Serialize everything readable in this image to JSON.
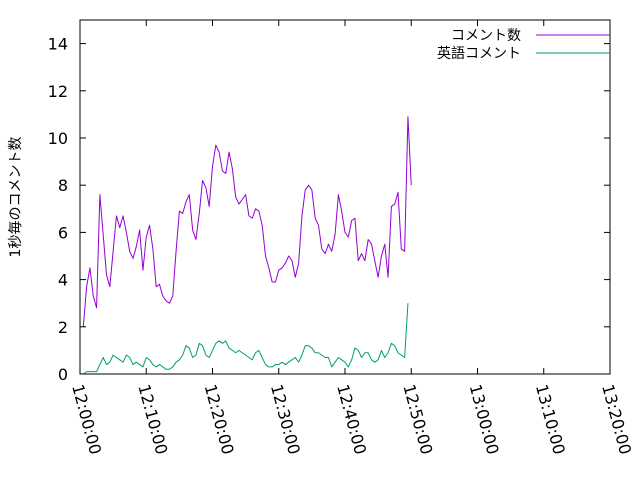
{
  "chart_data": {
    "type": "line",
    "xlabel": "",
    "ylabel": "1秒毎のコメント数",
    "xlim": [
      "12:00:00",
      "13:20:00"
    ],
    "ylim": [
      0,
      15
    ],
    "x_ticks": [
      "12:00:00",
      "12:10:00",
      "12:20:00",
      "12:30:00",
      "12:40:00",
      "12:50:00",
      "13:00:00",
      "13:10:00",
      "13:20:00"
    ],
    "y_ticks": [
      0,
      2,
      4,
      6,
      8,
      10,
      12,
      14
    ],
    "legend_position": "top-right",
    "grid": false,
    "series": [
      {
        "name": "コメント数",
        "color": "#9400d3",
        "points": [
          [
            "12:00:30",
            2.0
          ],
          [
            "12:01:00",
            3.7
          ],
          [
            "12:01:30",
            4.5
          ],
          [
            "12:02:00",
            3.3
          ],
          [
            "12:02:30",
            2.8
          ],
          [
            "12:03:00",
            7.6
          ],
          [
            "12:03:30",
            5.9
          ],
          [
            "12:04:00",
            4.2
          ],
          [
            "12:04:30",
            3.7
          ],
          [
            "12:05:00",
            5.2
          ],
          [
            "12:05:30",
            6.7
          ],
          [
            "12:06:00",
            6.2
          ],
          [
            "12:06:30",
            6.7
          ],
          [
            "12:07:00",
            6.0
          ],
          [
            "12:07:30",
            5.2
          ],
          [
            "12:08:00",
            4.9
          ],
          [
            "12:08:30",
            5.4
          ],
          [
            "12:09:00",
            6.1
          ],
          [
            "12:09:30",
            4.4
          ],
          [
            "12:10:00",
            5.8
          ],
          [
            "12:10:30",
            6.3
          ],
          [
            "12:11:00",
            5.3
          ],
          [
            "12:11:30",
            3.7
          ],
          [
            "12:12:00",
            3.8
          ],
          [
            "12:12:30",
            3.3
          ],
          [
            "12:13:00",
            3.1
          ],
          [
            "12:13:30",
            3.0
          ],
          [
            "12:14:00",
            3.3
          ],
          [
            "12:14:30",
            5.2
          ],
          [
            "12:15:00",
            6.9
          ],
          [
            "12:15:30",
            6.8
          ],
          [
            "12:16:00",
            7.3
          ],
          [
            "12:16:30",
            7.6
          ],
          [
            "12:17:00",
            6.1
          ],
          [
            "12:17:30",
            5.7
          ],
          [
            "12:18:00",
            6.8
          ],
          [
            "12:18:30",
            8.2
          ],
          [
            "12:19:00",
            7.9
          ],
          [
            "12:19:30",
            7.1
          ],
          [
            "12:20:00",
            8.8
          ],
          [
            "12:20:30",
            9.7
          ],
          [
            "12:21:00",
            9.4
          ],
          [
            "12:21:30",
            8.6
          ],
          [
            "12:22:00",
            8.5
          ],
          [
            "12:22:30",
            9.4
          ],
          [
            "12:23:00",
            8.7
          ],
          [
            "12:23:30",
            7.5
          ],
          [
            "12:24:00",
            7.2
          ],
          [
            "12:24:30",
            7.4
          ],
          [
            "12:25:00",
            7.6
          ],
          [
            "12:25:30",
            6.7
          ],
          [
            "12:26:00",
            6.6
          ],
          [
            "12:26:30",
            7.0
          ],
          [
            "12:27:00",
            6.9
          ],
          [
            "12:27:30",
            6.3
          ],
          [
            "12:28:00",
            5.0
          ],
          [
            "12:28:30",
            4.5
          ],
          [
            "12:29:00",
            3.9
          ],
          [
            "12:29:30",
            3.9
          ],
          [
            "12:30:00",
            4.4
          ],
          [
            "12:30:30",
            4.5
          ],
          [
            "12:31:00",
            4.7
          ],
          [
            "12:31:30",
            5.0
          ],
          [
            "12:32:00",
            4.8
          ],
          [
            "12:32:30",
            4.1
          ],
          [
            "12:33:00",
            4.7
          ],
          [
            "12:33:30",
            6.7
          ],
          [
            "12:34:00",
            7.8
          ],
          [
            "12:34:30",
            8.0
          ],
          [
            "12:35:00",
            7.8
          ],
          [
            "12:35:30",
            6.6
          ],
          [
            "12:36:00",
            6.3
          ],
          [
            "12:36:30",
            5.3
          ],
          [
            "12:37:00",
            5.1
          ],
          [
            "12:37:30",
            5.5
          ],
          [
            "12:38:00",
            5.2
          ],
          [
            "12:38:30",
            5.9
          ],
          [
            "12:39:00",
            7.6
          ],
          [
            "12:39:30",
            6.9
          ],
          [
            "12:40:00",
            6.0
          ],
          [
            "12:40:30",
            5.8
          ],
          [
            "12:41:00",
            6.5
          ],
          [
            "12:41:30",
            6.6
          ],
          [
            "12:42:00",
            4.8
          ],
          [
            "12:42:30",
            5.1
          ],
          [
            "12:43:00",
            4.8
          ],
          [
            "12:43:30",
            5.7
          ],
          [
            "12:44:00",
            5.5
          ],
          [
            "12:44:30",
            4.8
          ],
          [
            "12:45:00",
            4.1
          ],
          [
            "12:45:30",
            5.0
          ],
          [
            "12:46:00",
            5.5
          ],
          [
            "12:46:30",
            4.1
          ],
          [
            "12:47:00",
            7.1
          ],
          [
            "12:47:30",
            7.2
          ],
          [
            "12:48:00",
            7.7
          ],
          [
            "12:48:30",
            5.3
          ],
          [
            "12:49:00",
            5.2
          ],
          [
            "12:49:30",
            10.9
          ],
          [
            "12:50:00",
            8.0
          ]
        ]
      },
      {
        "name": "英語コメント",
        "color": "#009e73",
        "points": [
          [
            "12:00:30",
            0.0
          ],
          [
            "12:01:00",
            0.1
          ],
          [
            "12:01:30",
            0.1
          ],
          [
            "12:02:00",
            0.1
          ],
          [
            "12:02:30",
            0.1
          ],
          [
            "12:03:00",
            0.4
          ],
          [
            "12:03:30",
            0.7
          ],
          [
            "12:04:00",
            0.4
          ],
          [
            "12:04:30",
            0.5
          ],
          [
            "12:05:00",
            0.8
          ],
          [
            "12:05:30",
            0.7
          ],
          [
            "12:06:00",
            0.6
          ],
          [
            "12:06:30",
            0.5
          ],
          [
            "12:07:00",
            0.8
          ],
          [
            "12:07:30",
            0.7
          ],
          [
            "12:08:00",
            0.4
          ],
          [
            "12:08:30",
            0.5
          ],
          [
            "12:09:00",
            0.4
          ],
          [
            "12:09:30",
            0.3
          ],
          [
            "12:10:00",
            0.7
          ],
          [
            "12:10:30",
            0.6
          ],
          [
            "12:11:00",
            0.4
          ],
          [
            "12:11:30",
            0.3
          ],
          [
            "12:12:00",
            0.4
          ],
          [
            "12:12:30",
            0.3
          ],
          [
            "12:13:00",
            0.2
          ],
          [
            "12:13:30",
            0.2
          ],
          [
            "12:14:00",
            0.3
          ],
          [
            "12:14:30",
            0.5
          ],
          [
            "12:15:00",
            0.6
          ],
          [
            "12:15:30",
            0.8
          ],
          [
            "12:16:00",
            1.2
          ],
          [
            "12:16:30",
            1.1
          ],
          [
            "12:17:00",
            0.7
          ],
          [
            "12:17:30",
            0.8
          ],
          [
            "12:18:00",
            1.3
          ],
          [
            "12:18:30",
            1.2
          ],
          [
            "12:19:00",
            0.8
          ],
          [
            "12:19:30",
            0.7
          ],
          [
            "12:20:00",
            1.0
          ],
          [
            "12:20:30",
            1.3
          ],
          [
            "12:21:00",
            1.4
          ],
          [
            "12:21:30",
            1.3
          ],
          [
            "12:22:00",
            1.4
          ],
          [
            "12:22:30",
            1.1
          ],
          [
            "12:23:00",
            1.0
          ],
          [
            "12:23:30",
            0.9
          ],
          [
            "12:24:00",
            1.0
          ],
          [
            "12:24:30",
            0.9
          ],
          [
            "12:25:00",
            0.8
          ],
          [
            "12:25:30",
            0.7
          ],
          [
            "12:26:00",
            0.6
          ],
          [
            "12:26:30",
            0.9
          ],
          [
            "12:27:00",
            1.0
          ],
          [
            "12:27:30",
            0.7
          ],
          [
            "12:28:00",
            0.4
          ],
          [
            "12:28:30",
            0.3
          ],
          [
            "12:29:00",
            0.3
          ],
          [
            "12:29:30",
            0.4
          ],
          [
            "12:30:00",
            0.4
          ],
          [
            "12:30:30",
            0.5
          ],
          [
            "12:31:00",
            0.4
          ],
          [
            "12:31:30",
            0.5
          ],
          [
            "12:32:00",
            0.6
          ],
          [
            "12:32:30",
            0.7
          ],
          [
            "12:33:00",
            0.5
          ],
          [
            "12:33:30",
            0.8
          ],
          [
            "12:34:00",
            1.2
          ],
          [
            "12:34:30",
            1.2
          ],
          [
            "12:35:00",
            1.1
          ],
          [
            "12:35:30",
            0.9
          ],
          [
            "12:36:00",
            0.9
          ],
          [
            "12:36:30",
            0.8
          ],
          [
            "12:37:00",
            0.7
          ],
          [
            "12:37:30",
            0.7
          ],
          [
            "12:38:00",
            0.3
          ],
          [
            "12:38:30",
            0.5
          ],
          [
            "12:39:00",
            0.7
          ],
          [
            "12:39:30",
            0.6
          ],
          [
            "12:40:00",
            0.5
          ],
          [
            "12:40:30",
            0.3
          ],
          [
            "12:41:00",
            0.6
          ],
          [
            "12:41:30",
            1.1
          ],
          [
            "12:42:00",
            1.0
          ],
          [
            "12:42:30",
            0.7
          ],
          [
            "12:43:00",
            0.9
          ],
          [
            "12:43:30",
            0.9
          ],
          [
            "12:44:00",
            0.6
          ],
          [
            "12:44:30",
            0.5
          ],
          [
            "12:45:00",
            0.6
          ],
          [
            "12:45:30",
            1.0
          ],
          [
            "12:46:00",
            0.7
          ],
          [
            "12:46:30",
            0.9
          ],
          [
            "12:47:00",
            1.3
          ],
          [
            "12:47:30",
            1.2
          ],
          [
            "12:48:00",
            0.9
          ],
          [
            "12:48:30",
            0.8
          ],
          [
            "12:49:00",
            0.7
          ],
          [
            "12:49:30",
            3.0
          ]
        ]
      }
    ]
  }
}
